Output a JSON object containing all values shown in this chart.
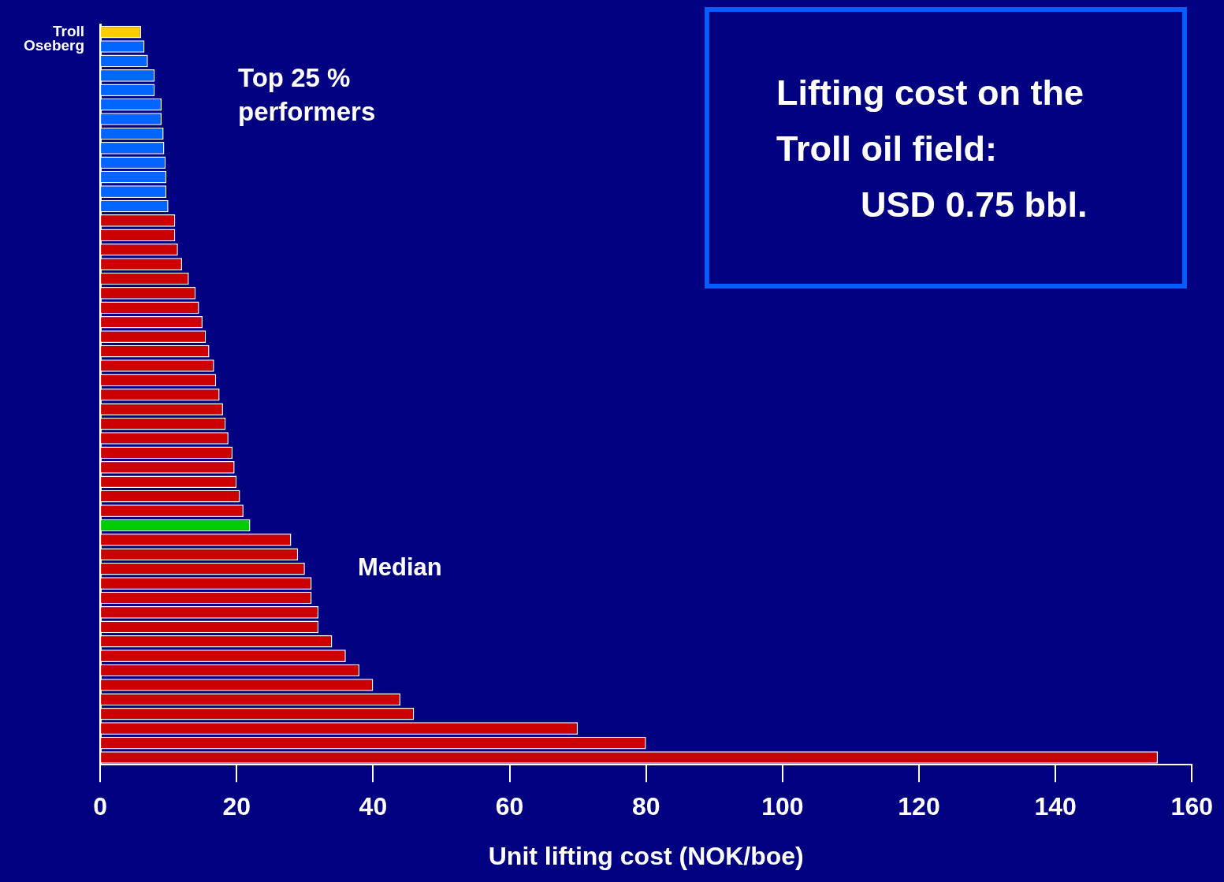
{
  "chart_data": {
    "type": "bar",
    "orientation": "horizontal",
    "xlabel": "Unit lifting cost (NOK/boe)",
    "categories": [
      "Troll",
      "Oseberg",
      null,
      null,
      null,
      null,
      null,
      null,
      null,
      null,
      null,
      null,
      null,
      null,
      null,
      null,
      null,
      null,
      null,
      null,
      null,
      null,
      null,
      null,
      null,
      null,
      null,
      null,
      null,
      null,
      null,
      null,
      null,
      null,
      null,
      null,
      null,
      null,
      null,
      null,
      null,
      null,
      null,
      null,
      null,
      null,
      null,
      null,
      null,
      null,
      null
    ],
    "values": [
      6,
      6.5,
      7,
      8,
      8,
      9,
      9,
      9.3,
      9.4,
      9.6,
      9.7,
      9.7,
      10,
      11,
      11,
      11.4,
      12,
      13,
      14,
      14.5,
      15,
      15.5,
      16,
      16.7,
      17,
      17.5,
      18,
      18.4,
      18.8,
      19.4,
      19.7,
      20,
      20.5,
      21,
      22,
      28,
      29,
      30,
      31,
      31,
      32,
      32,
      34,
      36,
      38,
      40,
      44,
      46,
      70,
      80,
      155
    ],
    "colors": [
      "#ffcc00",
      "#0066ff",
      "#0066ff",
      "#0066ff",
      "#0066ff",
      "#0066ff",
      "#0066ff",
      "#0066ff",
      "#0066ff",
      "#0066ff",
      "#0066ff",
      "#0066ff",
      "#0066ff",
      "#cc0000",
      "#cc0000",
      "#cc0000",
      "#cc0000",
      "#cc0000",
      "#cc0000",
      "#cc0000",
      "#cc0000",
      "#cc0000",
      "#cc0000",
      "#cc0000",
      "#cc0000",
      "#cc0000",
      "#cc0000",
      "#cc0000",
      "#cc0000",
      "#cc0000",
      "#cc0000",
      "#cc0000",
      "#cc0000",
      "#cc0000",
      "#00cc00",
      "#cc0000",
      "#cc0000",
      "#cc0000",
      "#cc0000",
      "#cc0000",
      "#cc0000",
      "#cc0000",
      "#cc0000",
      "#cc0000",
      "#cc0000",
      "#cc0000",
      "#cc0000",
      "#cc0000",
      "#cc0000",
      "#cc0000",
      "#cc0000"
    ],
    "xlim": [
      0,
      160
    ],
    "xticks": [
      0,
      20,
      40,
      60,
      80,
      100,
      120,
      140,
      160
    ],
    "grid": false,
    "legend": false,
    "annotations": [
      "Top 25 %\nperformers",
      "Median",
      "Lifting cost on the\nTroll oil field:\nUSD 0.75 bbl."
    ]
  }
}
